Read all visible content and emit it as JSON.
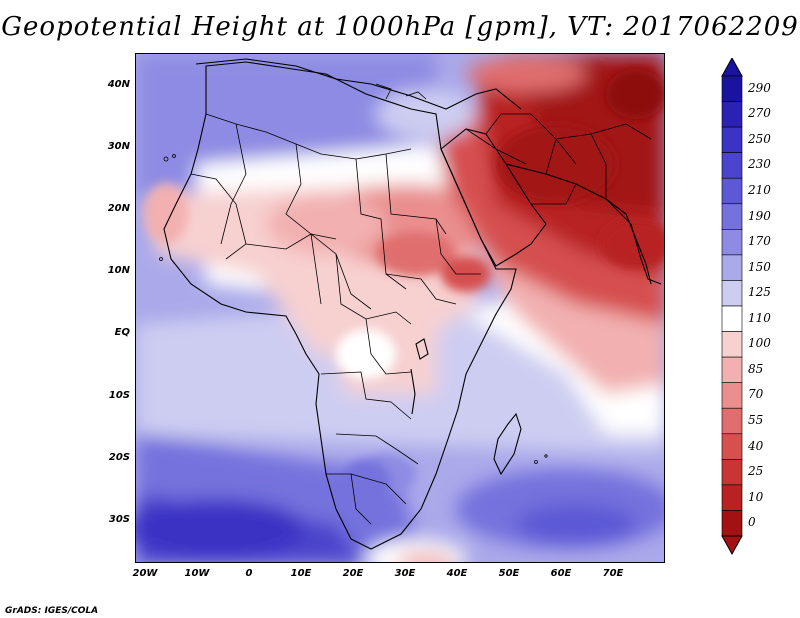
{
  "title": "Geopotential Height at 1000hPa [gpm], VT: 2017062209",
  "credit": "GrADS: IGES/COLA",
  "y_axis": {
    "ticks": [
      "40N",
      "30N",
      "20N",
      "10N",
      "EQ",
      "10S",
      "20S",
      "30S"
    ]
  },
  "x_axis": {
    "ticks": [
      "20W",
      "10W",
      "0",
      "10E",
      "20E",
      "30E",
      "40E",
      "50E",
      "60E",
      "70E"
    ]
  },
  "colorbar": {
    "levels": [
      "290",
      "270",
      "250",
      "230",
      "210",
      "190",
      "170",
      "150",
      "125",
      "110",
      "100",
      "85",
      "70",
      "55",
      "40",
      "25",
      "10",
      "0"
    ],
    "colors": [
      "#1a13a0",
      "#2b22b4",
      "#3a33c4",
      "#4b44cc",
      "#5c58d6",
      "#7572dd",
      "#8d8be3",
      "#aaa9ea",
      "#cdcdf2",
      "#ffffff",
      "#f7d0d0",
      "#f2b0b0",
      "#ea8e8e",
      "#e06e6e",
      "#d65050",
      "#c93535",
      "#b82222",
      "#a21212"
    ]
  },
  "map": {
    "field": "Geopotential Height at 1000hPa",
    "units": "gpm",
    "valid_time": "2017062209",
    "region": "Africa / Arabian Peninsula"
  }
}
